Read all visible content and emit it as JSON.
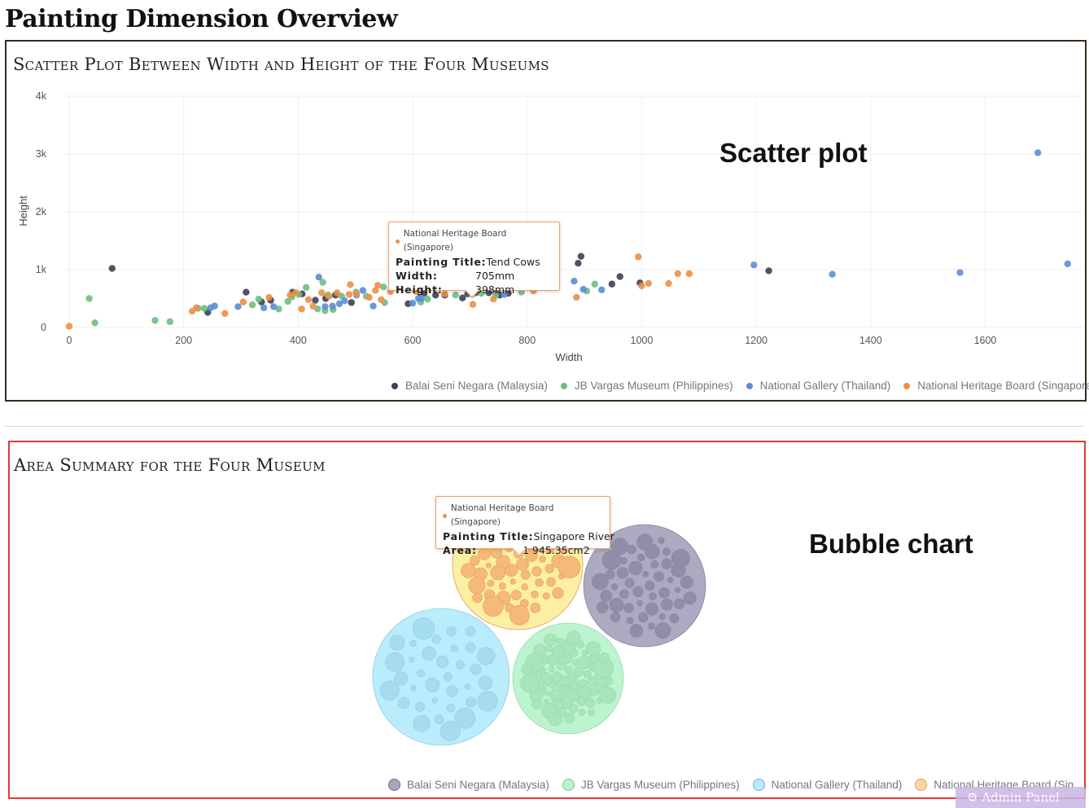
{
  "page": {
    "title": "Painting Dimension Overview"
  },
  "scatter": {
    "title": "Scatter Plot Between Width and Height of the Four Museums",
    "annotation": "Scatter plot",
    "tooltip": {
      "museum": "National Heritage Board (Singapore)",
      "title_label": "Painting Title:",
      "title_value": "Tend Cows",
      "width_label": "Width:",
      "width_value": "705mm",
      "height_label": "Height:",
      "height_value": "398mm"
    }
  },
  "bubble": {
    "title": "Area Summary for the Four Museum",
    "annotation": "Bubble chart",
    "tooltip": {
      "museum": "National Heritage Board (Singapore)",
      "title_label": "Painting Title:",
      "title_value": "Singapore River",
      "area_label": "Area:",
      "area_value": "1 945.35cm2"
    },
    "legend_last_visible": "National Heritage Board (Sin"
  },
  "admin_panel": {
    "label": "Admin Panel"
  },
  "museums": [
    {
      "name": "Balai Seni Negara (Malaysia)",
      "color": "#3f3f57",
      "fill": "#a7a5bd"
    },
    {
      "name": "JB Vargas Museum (Philippines)",
      "color": "#6dbe80",
      "fill": "#b9f3cc"
    },
    {
      "name": "National Gallery (Thailand)",
      "color": "#5b8dd6",
      "fill": "#b6ecfb"
    },
    {
      "name": "National Heritage Board (Singapore)",
      "color": "#ec8f47",
      "fill": "#fbee9f"
    }
  ],
  "chart_data": [
    {
      "type": "scatter",
      "title": "Scatter Plot Between Width and Height of the Four Museums",
      "xlabel": "Width",
      "ylabel": "Height",
      "xlim": [
        -20,
        1750
      ],
      "ylim": [
        0,
        4000
      ],
      "xticks": [
        0,
        200,
        400,
        600,
        800,
        1000,
        1200,
        1400,
        1600
      ],
      "yticks": [
        0,
        1000,
        2000,
        3000,
        4000
      ],
      "ytick_labels": [
        "0",
        "1k",
        "2k",
        "3k",
        "4k"
      ],
      "grid": true,
      "legend": "bottom-right",
      "series": [
        {
          "name": "Balai Seni Negara (Malaysia)",
          "points": [
            [
              75,
              1020
            ],
            [
              242,
              260
            ],
            [
              309,
              610
            ],
            [
              336,
              440
            ],
            [
              352,
              470
            ],
            [
              390,
              610
            ],
            [
              407,
              580
            ],
            [
              430,
              470
            ],
            [
              448,
              500
            ],
            [
              465,
              560
            ],
            [
              493,
              430
            ],
            [
              592,
              410
            ],
            [
              620,
              590
            ],
            [
              640,
              560
            ],
            [
              656,
              560
            ],
            [
              687,
              510
            ],
            [
              696,
              580
            ],
            [
              710,
              600
            ],
            [
              733,
              600
            ],
            [
              746,
              610
            ],
            [
              752,
              560
            ],
            [
              767,
              590
            ],
            [
              889,
              1110
            ],
            [
              894,
              1230
            ],
            [
              948,
              750
            ],
            [
              962,
              880
            ],
            [
              997,
              770
            ],
            [
              1222,
              980
            ]
          ]
        },
        {
          "name": "JB Vargas Museum (Philippines)",
          "points": [
            [
              35,
              500
            ],
            [
              45,
              80
            ],
            [
              150,
              120
            ],
            [
              176,
              100
            ],
            [
              225,
              330
            ],
            [
              236,
              330
            ],
            [
              320,
              390
            ],
            [
              331,
              490
            ],
            [
              366,
              320
            ],
            [
              382,
              450
            ],
            [
              389,
              530
            ],
            [
              401,
              570
            ],
            [
              414,
              690
            ],
            [
              434,
              320
            ],
            [
              443,
              780
            ],
            [
              447,
              290
            ],
            [
              452,
              560
            ],
            [
              461,
              310
            ],
            [
              476,
              540
            ],
            [
              501,
              610
            ],
            [
              519,
              540
            ],
            [
              549,
              700
            ],
            [
              551,
              430
            ],
            [
              614,
              440
            ],
            [
              626,
              490
            ],
            [
              675,
              560
            ],
            [
              704,
              570
            ],
            [
              720,
              590
            ],
            [
              745,
              560
            ],
            [
              790,
              610
            ],
            [
              918,
              750
            ],
            [
              904,
              630
            ]
          ]
        },
        {
          "name": "National Gallery (Thailand)",
          "points": [
            [
              247,
              340
            ],
            [
              254,
              370
            ],
            [
              295,
              360
            ],
            [
              340,
              340
            ],
            [
              357,
              360
            ],
            [
              436,
              870
            ],
            [
              447,
              360
            ],
            [
              460,
              370
            ],
            [
              472,
              410
            ],
            [
              481,
              460
            ],
            [
              502,
              560
            ],
            [
              513,
              640
            ],
            [
              531,
              370
            ],
            [
              600,
              420
            ],
            [
              610,
              500
            ],
            [
              615,
              500
            ],
            [
              685,
              760
            ],
            [
              718,
              880
            ],
            [
              760,
              570
            ],
            [
              760,
              690
            ],
            [
              882,
              800
            ],
            [
              898,
              660
            ],
            [
              930,
              650
            ],
            [
              1196,
              1080
            ],
            [
              1333,
              920
            ],
            [
              1556,
              950
            ],
            [
              1692,
              3020
            ],
            [
              1744,
              1100
            ]
          ]
        },
        {
          "name": "National Heritage Board (Singapore)",
          "points": [
            [
              0,
              20
            ],
            [
              215,
              280
            ],
            [
              222,
              340
            ],
            [
              272,
              240
            ],
            [
              304,
              440
            ],
            [
              349,
              520
            ],
            [
              386,
              560
            ],
            [
              396,
              600
            ],
            [
              406,
              320
            ],
            [
              418,
              480
            ],
            [
              426,
              370
            ],
            [
              441,
              600
            ],
            [
              454,
              540
            ],
            [
              468,
              600
            ],
            [
              489,
              570
            ],
            [
              491,
              740
            ],
            [
              502,
              580
            ],
            [
              524,
              520
            ],
            [
              535,
              640
            ],
            [
              539,
              730
            ],
            [
              545,
              480
            ],
            [
              561,
              620
            ],
            [
              606,
              620
            ],
            [
              642,
              950
            ],
            [
              656,
              580
            ],
            [
              697,
              720
            ],
            [
              705,
              398
            ],
            [
              712,
              900
            ],
            [
              725,
              780
            ],
            [
              741,
              490
            ],
            [
              752,
              690
            ],
            [
              768,
              750
            ],
            [
              787,
              820
            ],
            [
              811,
              630
            ],
            [
              886,
              520
            ],
            [
              994,
              1220
            ],
            [
              1000,
              720
            ],
            [
              1012,
              760
            ],
            [
              1047,
              760
            ],
            [
              1063,
              930
            ],
            [
              1083,
              930
            ]
          ]
        }
      ]
    },
    {
      "type": "bubble",
      "title": "Area Summary for the Four Museum",
      "legend": "bottom-right",
      "series": [
        {
          "name": "Balai Seni Negara (Malaysia)",
          "bubbles": 46
        },
        {
          "name": "JB Vargas Museum (Philippines)",
          "bubbles": 64
        },
        {
          "name": "National Gallery (Thailand)",
          "bubbles": 34
        },
        {
          "name": "National Heritage Board (Singapore)",
          "bubbles": 58
        }
      ]
    }
  ]
}
